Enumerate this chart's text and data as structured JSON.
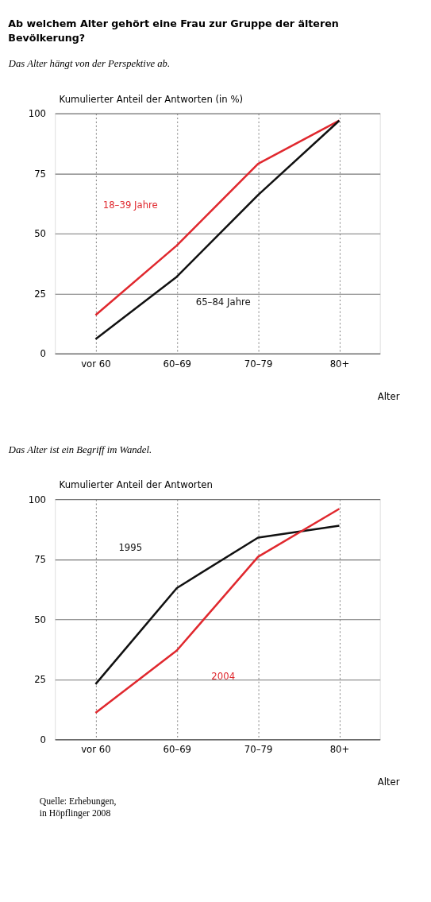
{
  "chart_data": [
    {
      "type": "line",
      "title": "Ab welchem Alter gehört eine Frau zur Gruppe der älteren Bevölkerung?",
      "subtitle": "Das Alter hängt von der Perspektive ab.",
      "xlabel": "Alter",
      "ylabel": "Kumulierter Anteil der Antworten (in %)",
      "categories": [
        "vor 60",
        "60–69",
        "70–79",
        "80+"
      ],
      "ylim": [
        0,
        100
      ],
      "yticks": [
        0,
        25,
        50,
        75,
        100
      ],
      "grid": true,
      "legend": false,
      "marker": "none",
      "line_style": "solid",
      "series": [
        {
          "name": "18–39 Jahre",
          "color": "#e0282e",
          "values": [
            16,
            45,
            79,
            97
          ]
        },
        {
          "name": "65–84 Jahre",
          "color": "#111111",
          "values": [
            6,
            32,
            66,
            97
          ]
        }
      ]
    },
    {
      "type": "line",
      "subtitle": "Das Alter ist ein Begriff im Wandel.",
      "xlabel": "Alter",
      "ylabel": "Kumulierter Anteil der Antworten",
      "categories": [
        "vor 60",
        "60–69",
        "70–79",
        "80+"
      ],
      "ylim": [
        0,
        100
      ],
      "yticks": [
        0,
        25,
        50,
        75,
        100
      ],
      "grid": true,
      "legend": false,
      "marker": "none",
      "line_style": "solid",
      "series": [
        {
          "name": "1995",
          "color": "#111111",
          "values": [
            23,
            63,
            84,
            89
          ]
        },
        {
          "name": "2004",
          "color": "#e0282e",
          "values": [
            11,
            37,
            76,
            96
          ]
        }
      ],
      "annotations": [
        "Quelle: Erhebungen,",
        "in Höpflinger 2008"
      ]
    }
  ]
}
